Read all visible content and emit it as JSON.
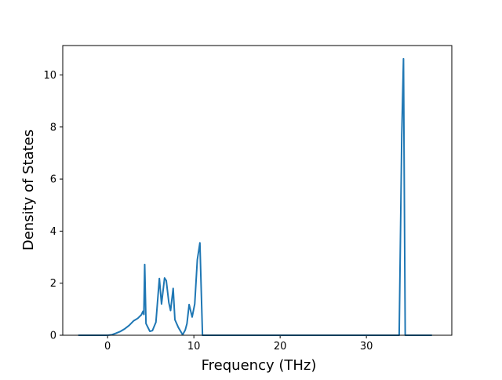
{
  "chart_data": {
    "type": "line",
    "x_label": "Frequency (THz)",
    "y_label": "Density of States",
    "x": [
      -3.4,
      0,
      0.5,
      1,
      1.5,
      2,
      2.5,
      3,
      3.5,
      3.9,
      4.1,
      4.2,
      4.3,
      4.45,
      4.9,
      5.2,
      5.6,
      6.0,
      6.25,
      6.6,
      6.8,
      7.1,
      7.3,
      7.6,
      7.8,
      8.2,
      8.7,
      9.0,
      9.2,
      9.45,
      9.8,
      10.1,
      10.4,
      10.7,
      11.0,
      33.8,
      34.1,
      34.3,
      34.5,
      37.6
    ],
    "series": [
      {
        "name": "DOS",
        "color": "#1f77b4",
        "values": [
          0,
          0,
          0.02,
          0.08,
          0.15,
          0.25,
          0.38,
          0.55,
          0.65,
          0.78,
          0.92,
          0.8,
          2.72,
          0.45,
          0.15,
          0.18,
          0.5,
          2.18,
          1.2,
          2.2,
          2.1,
          1.25,
          0.95,
          1.8,
          0.6,
          0.3,
          0.02,
          0.2,
          0.45,
          1.18,
          0.7,
          1.2,
          2.9,
          3.55,
          0,
          0,
          7.7,
          10.62,
          0,
          0
        ]
      }
    ],
    "xlim": [
      -5.2,
      39.9
    ],
    "ylim": [
      0,
      11.13
    ],
    "xticks": [
      0,
      10,
      20,
      30
    ],
    "yticks": [
      0,
      2,
      4,
      6,
      8,
      10
    ]
  }
}
